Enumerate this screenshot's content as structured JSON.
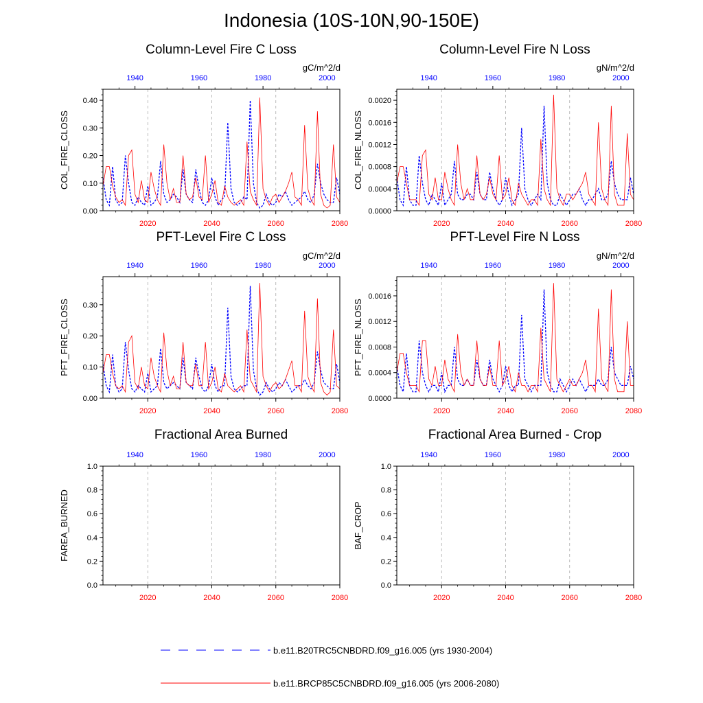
{
  "title": "Indonesia (10S-10N,90-150E)",
  "colors": {
    "hist": "#0000ff",
    "future": "#ff0000",
    "axis": "#000000",
    "grid": "#aaaaaa"
  },
  "legend": [
    {
      "label": "b.e11.B20TRC5CNBDRD.f09_g16.005 (yrs 1930-2004)",
      "color": "#0000ff",
      "style": "dashed"
    },
    {
      "label": "b.e11.BRCP85C5CNBDRD.f09_g16.005 (yrs 2006-2080)",
      "color": "#ff0000",
      "style": "solid"
    }
  ],
  "chart_data": [
    {
      "type": "line",
      "title": "Column-Level Fire C Loss",
      "ylabel": "COL_FIRE_CLOSS",
      "units": "gC/m^2/d",
      "ylim": [
        0,
        0.44
      ],
      "yticks": [
        0,
        0.1,
        0.2,
        0.3,
        0.4
      ],
      "ytick_labels": [
        "0.00",
        "0.10",
        "0.20",
        "0.30",
        "0.40"
      ],
      "x_bottom_ticks": [
        "2020",
        "2040",
        "2060",
        "2080"
      ],
      "x_top_ticks": [
        "1940",
        "1960",
        "1980",
        "2000"
      ],
      "series": [
        {
          "role": "hist",
          "x_start": 1930,
          "values": [
            0.12,
            0.04,
            0.02,
            0.16,
            0.04,
            0.02,
            0.03,
            0.2,
            0.1,
            0.03,
            0.02,
            0.05,
            0.03,
            0.02,
            0.09,
            0.02,
            0.03,
            0.05,
            0.18,
            0.06,
            0.03,
            0.04,
            0.06,
            0.05,
            0.03,
            0.15,
            0.06,
            0.04,
            0.03,
            0.15,
            0.08,
            0.03,
            0.02,
            0.04,
            0.12,
            0.05,
            0.02,
            0.04,
            0.05,
            0.32,
            0.08,
            0.03,
            0.02,
            0.03,
            0.05,
            0.04,
            0.4,
            0.1,
            0.03,
            0.01,
            0.02,
            0.06,
            0.03,
            0.02,
            0.03,
            0.06,
            0.05,
            0.07,
            0.04,
            0.02,
            0.03,
            0.04,
            0.05,
            0.07,
            0.04,
            0.03,
            0.06,
            0.17,
            0.1,
            0.06,
            0.04,
            0.03,
            0.03,
            0.12,
            0.06
          ]
        },
        {
          "role": "future",
          "x_start": 2006,
          "values": [
            0.09,
            0.16,
            0.16,
            0.09,
            0.05,
            0.03,
            0.04,
            0.02,
            0.2,
            0.22,
            0.06,
            0.03,
            0.11,
            0.04,
            0.03,
            0.14,
            0.08,
            0.04,
            0.02,
            0.24,
            0.1,
            0.04,
            0.08,
            0.03,
            0.03,
            0.2,
            0.06,
            0.04,
            0.05,
            0.12,
            0.05,
            0.04,
            0.2,
            0.03,
            0.06,
            0.11,
            0.03,
            0.02,
            0.09,
            0.05,
            0.03,
            0.02,
            0.03,
            0.04,
            0.02,
            0.25,
            0.07,
            0.04,
            0.02,
            0.41,
            0.08,
            0.04,
            0.02,
            0.05,
            0.06,
            0.03,
            0.05,
            0.07,
            0.1,
            0.14,
            0.05,
            0.04,
            0.02,
            0.31,
            0.08,
            0.04,
            0.02,
            0.36,
            0.06,
            0.02,
            0.01,
            0.02,
            0.24,
            0.05,
            0.03
          ]
        }
      ]
    },
    {
      "type": "line",
      "title": "Column-Level Fire N Loss",
      "ylabel": "COL_FIRE_NLOSS",
      "units": "gN/m^2/d",
      "ylim": [
        0,
        0.0022
      ],
      "yticks": [
        0,
        0.0004,
        0.0008,
        0.0012,
        0.0016,
        0.002
      ],
      "ytick_labels": [
        "0.0000",
        "0.0004",
        "0.0008",
        "0.0012",
        "0.0016",
        "0.0020"
      ],
      "x_bottom_ticks": [
        "2020",
        "2040",
        "2060",
        "2080"
      ],
      "x_top_ticks": [
        "1940",
        "1960",
        "1980",
        "2000"
      ],
      "series": [
        {
          "role": "hist",
          "x_start": 1930,
          "values": [
            0.0006,
            0.0002,
            0.0001,
            0.0008,
            0.0002,
            0.0001,
            0.0001,
            0.001,
            0.0005,
            0.0002,
            0.0001,
            0.0003,
            0.0002,
            0.0001,
            0.0005,
            0.0001,
            0.0002,
            0.0003,
            0.0009,
            0.0003,
            0.0002,
            0.0002,
            0.0003,
            0.0003,
            0.0002,
            0.0007,
            0.0003,
            0.0002,
            0.0002,
            0.0007,
            0.0004,
            0.0002,
            0.0001,
            0.0002,
            0.0006,
            0.0003,
            0.0001,
            0.0002,
            0.0003,
            0.0015,
            0.0004,
            0.0002,
            0.0001,
            0.0002,
            0.0003,
            0.0002,
            0.0019,
            0.0005,
            0.0002,
            0.0001,
            0.0001,
            0.0003,
            0.0002,
            0.0001,
            0.0002,
            0.0003,
            0.0003,
            0.0004,
            0.0002,
            0.0001,
            0.0002,
            0.0002,
            0.0003,
            0.0004,
            0.0002,
            0.0002,
            0.0003,
            0.0009,
            0.0005,
            0.0003,
            0.0002,
            0.0002,
            0.0002,
            0.0006,
            0.0003
          ]
        },
        {
          "role": "future",
          "x_start": 2006,
          "values": [
            0.0005,
            0.0008,
            0.0008,
            0.0005,
            0.0002,
            0.0002,
            0.0002,
            0.0001,
            0.001,
            0.0011,
            0.0003,
            0.0002,
            0.0006,
            0.0002,
            0.0002,
            0.0007,
            0.0004,
            0.0002,
            0.0001,
            0.0012,
            0.0005,
            0.0002,
            0.0004,
            0.0002,
            0.0002,
            0.001,
            0.0003,
            0.0002,
            0.0003,
            0.0006,
            0.0003,
            0.0002,
            0.001,
            0.0002,
            0.0003,
            0.0006,
            0.0002,
            0.0001,
            0.0005,
            0.0003,
            0.0002,
            0.0001,
            0.0002,
            0.0002,
            0.0001,
            0.0013,
            0.0004,
            0.0002,
            0.0001,
            0.0021,
            0.0004,
            0.0002,
            0.0001,
            0.0003,
            0.0003,
            0.0002,
            0.0003,
            0.0004,
            0.0005,
            0.0007,
            0.0003,
            0.0002,
            0.0001,
            0.0016,
            0.0004,
            0.0002,
            0.0001,
            0.0019,
            0.0003,
            0.0001,
            0.0001,
            0.0001,
            0.0014,
            0.0003,
            0.0002
          ]
        }
      ]
    },
    {
      "type": "line",
      "title": "PFT-Level Fire C Loss",
      "ylabel": "PFT_FIRE_CLOSS",
      "units": "gC/m^2/d",
      "ylim": [
        0,
        0.39
      ],
      "yticks": [
        0,
        0.1,
        0.2,
        0.3
      ],
      "ytick_labels": [
        "0.00",
        "0.10",
        "0.20",
        "0.30"
      ],
      "x_bottom_ticks": [
        "2020",
        "2040",
        "2060",
        "2080"
      ],
      "x_top_ticks": [
        "1940",
        "1960",
        "1980",
        "2000"
      ],
      "series": [
        {
          "role": "hist",
          "x_start": 1930,
          "values": [
            0.11,
            0.04,
            0.02,
            0.14,
            0.04,
            0.02,
            0.03,
            0.18,
            0.09,
            0.03,
            0.02,
            0.04,
            0.03,
            0.02,
            0.08,
            0.02,
            0.03,
            0.04,
            0.16,
            0.05,
            0.03,
            0.04,
            0.05,
            0.04,
            0.03,
            0.13,
            0.05,
            0.04,
            0.03,
            0.13,
            0.07,
            0.03,
            0.02,
            0.04,
            0.11,
            0.04,
            0.02,
            0.04,
            0.04,
            0.29,
            0.07,
            0.03,
            0.02,
            0.03,
            0.04,
            0.04,
            0.36,
            0.09,
            0.03,
            0.01,
            0.02,
            0.05,
            0.03,
            0.02,
            0.03,
            0.05,
            0.04,
            0.06,
            0.04,
            0.02,
            0.03,
            0.04,
            0.04,
            0.06,
            0.04,
            0.03,
            0.05,
            0.15,
            0.09,
            0.05,
            0.04,
            0.03,
            0.03,
            0.11,
            0.05
          ]
        },
        {
          "role": "future",
          "x_start": 2006,
          "values": [
            0.08,
            0.14,
            0.14,
            0.08,
            0.04,
            0.03,
            0.04,
            0.02,
            0.18,
            0.2,
            0.05,
            0.03,
            0.1,
            0.04,
            0.03,
            0.13,
            0.07,
            0.04,
            0.02,
            0.21,
            0.09,
            0.04,
            0.07,
            0.03,
            0.03,
            0.18,
            0.05,
            0.04,
            0.04,
            0.11,
            0.04,
            0.04,
            0.18,
            0.03,
            0.05,
            0.1,
            0.03,
            0.02,
            0.08,
            0.04,
            0.03,
            0.02,
            0.03,
            0.04,
            0.02,
            0.22,
            0.06,
            0.04,
            0.02,
            0.37,
            0.07,
            0.04,
            0.02,
            0.04,
            0.05,
            0.03,
            0.04,
            0.06,
            0.09,
            0.12,
            0.04,
            0.04,
            0.02,
            0.28,
            0.07,
            0.04,
            0.02,
            0.32,
            0.05,
            0.02,
            0.01,
            0.02,
            0.22,
            0.04,
            0.03
          ]
        }
      ]
    },
    {
      "type": "line",
      "title": "PFT-Level Fire N Loss",
      "ylabel": "PFT_FIRE_NLOSS",
      "units": "gN/m^2/d",
      "ylim": [
        0,
        0.0019
      ],
      "yticks": [
        0,
        0.0004,
        0.0008,
        0.0012,
        0.0016
      ],
      "ytick_labels": [
        "0.0000",
        "0.0004",
        "0.0008",
        "0.0012",
        "0.0016"
      ],
      "x_bottom_ticks": [
        "2020",
        "2040",
        "2060",
        "2080"
      ],
      "x_top_ticks": [
        "1940",
        "1960",
        "1980",
        "2000"
      ],
      "series": [
        {
          "role": "hist",
          "x_start": 1930,
          "values": [
            0.0005,
            0.0002,
            0.0001,
            0.0007,
            0.0002,
            0.0001,
            0.0001,
            0.0009,
            0.0004,
            0.0002,
            0.0001,
            0.0002,
            0.0002,
            0.0001,
            0.0004,
            0.0001,
            0.0002,
            0.0002,
            0.0008,
            0.0003,
            0.0002,
            0.0002,
            0.0003,
            0.0002,
            0.0002,
            0.0006,
            0.0003,
            0.0002,
            0.0002,
            0.0006,
            0.0003,
            0.0002,
            0.0001,
            0.0002,
            0.0005,
            0.0002,
            0.0001,
            0.0002,
            0.0002,
            0.0013,
            0.0003,
            0.0002,
            0.0001,
            0.0002,
            0.0002,
            0.0002,
            0.0017,
            0.0004,
            0.0002,
            0.0001,
            0.0001,
            0.0003,
            0.0002,
            0.0001,
            0.0002,
            0.0003,
            0.0002,
            0.0003,
            0.0002,
            0.0001,
            0.0002,
            0.0002,
            0.0002,
            0.0003,
            0.0002,
            0.0002,
            0.0003,
            0.0008,
            0.0004,
            0.0003,
            0.0002,
            0.0002,
            0.0002,
            0.0005,
            0.0003
          ]
        },
        {
          "role": "future",
          "x_start": 2006,
          "values": [
            0.0004,
            0.0007,
            0.0007,
            0.0004,
            0.0002,
            0.0002,
            0.0002,
            0.0001,
            0.0009,
            0.0009,
            0.0003,
            0.0002,
            0.0005,
            0.0002,
            0.0002,
            0.0006,
            0.0003,
            0.0002,
            0.0001,
            0.001,
            0.0004,
            0.0002,
            0.0003,
            0.0002,
            0.0002,
            0.0009,
            0.0003,
            0.0002,
            0.0002,
            0.0005,
            0.0002,
            0.0002,
            0.0009,
            0.0002,
            0.0003,
            0.0005,
            0.0002,
            0.0001,
            0.0004,
            0.0002,
            0.0002,
            0.0001,
            0.0002,
            0.0002,
            0.0001,
            0.0011,
            0.0003,
            0.0002,
            0.0001,
            0.0018,
            0.0003,
            0.0002,
            0.0001,
            0.0002,
            0.0003,
            0.0002,
            0.0002,
            0.0003,
            0.0004,
            0.0006,
            0.0002,
            0.0002,
            0.0001,
            0.0014,
            0.0003,
            0.0002,
            0.0001,
            0.0017,
            0.0003,
            0.0001,
            0.0001,
            0.0001,
            0.0012,
            0.0002,
            0.0002
          ]
        }
      ]
    },
    {
      "type": "line",
      "title": "Fractional Area Burned",
      "ylabel": "FAREA_BURNED",
      "units": "",
      "ylim": [
        0,
        1.0
      ],
      "yticks": [
        0,
        0.2,
        0.4,
        0.6,
        0.8,
        1.0
      ],
      "ytick_labels": [
        "0.0",
        "0.2",
        "0.4",
        "0.6",
        "0.8",
        "1.0"
      ],
      "x_bottom_ticks": [
        "2020",
        "2040",
        "2060",
        "2080"
      ],
      "x_top_ticks": [
        "1940",
        "1960",
        "1980",
        "2000"
      ],
      "series": []
    },
    {
      "type": "line",
      "title": "Fractional Area Burned - Crop",
      "ylabel": "BAF_CROP",
      "units": "",
      "ylim": [
        0,
        1.0
      ],
      "yticks": [
        0,
        0.2,
        0.4,
        0.6,
        0.8,
        1.0
      ],
      "ytick_labels": [
        "0.0",
        "0.2",
        "0.4",
        "0.6",
        "0.8",
        "1.0"
      ],
      "x_bottom_ticks": [
        "2020",
        "2040",
        "2060",
        "2080"
      ],
      "x_top_ticks": [
        "1940",
        "1960",
        "1980",
        "2000"
      ],
      "series": []
    }
  ]
}
